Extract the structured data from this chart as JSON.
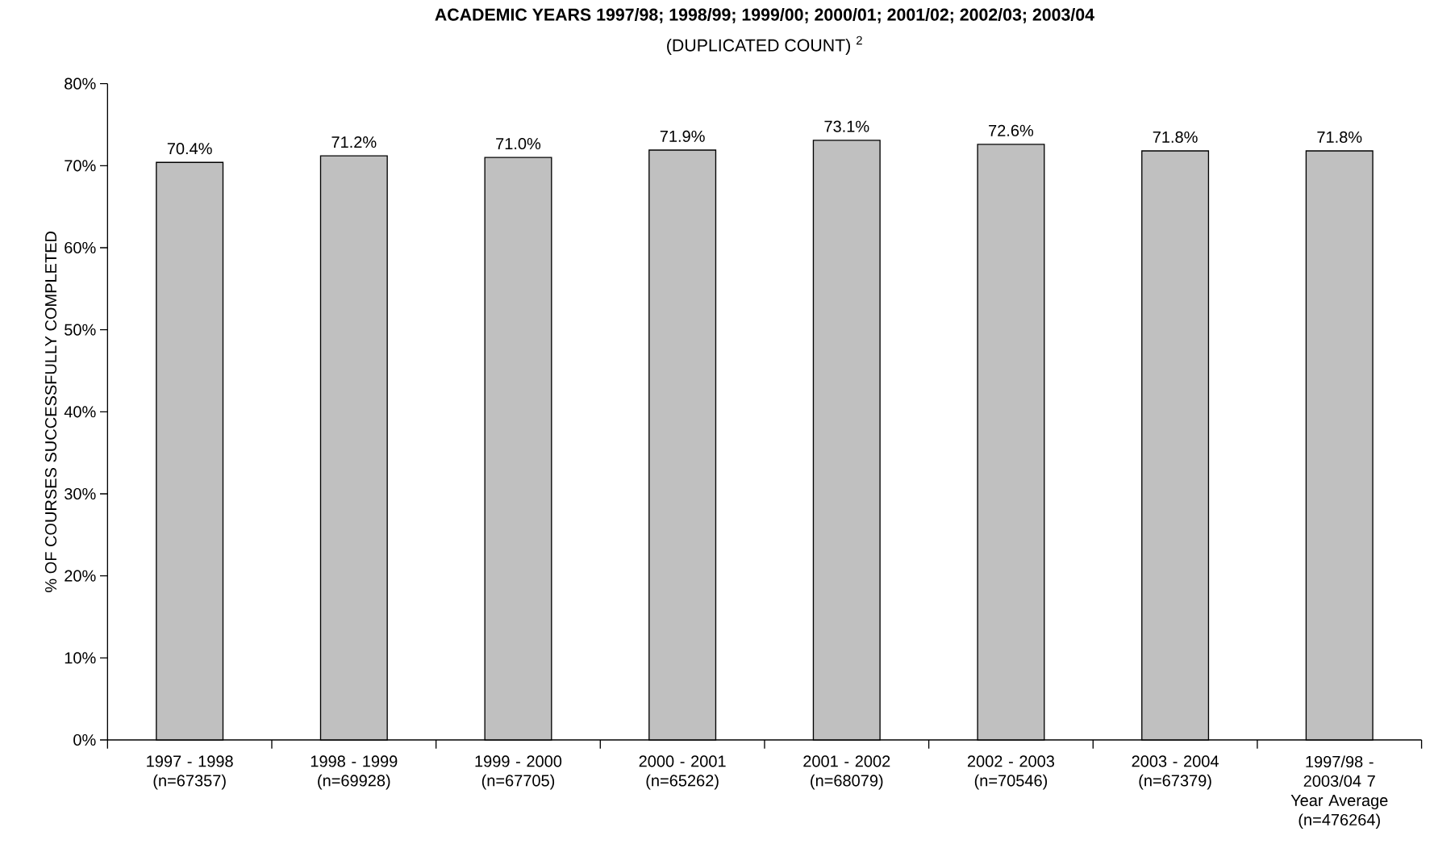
{
  "chart_data": {
    "type": "bar",
    "title": "ACADEMIC YEARS 1997/98; 1998/99; 1999/00; 2000/01; 2001/02; 2002/03; 2003/04",
    "subtitle": "(DUPLICATED COUNT) $^{2}$",
    "ylabel": "% OF COURSES SUCCESSFULLY COMPLETED",
    "categories": [
      "1997 - 1998 (n=67357)",
      "1998 - 1999 (n=69928)",
      "1999 - 2000 (n=67705)",
      "2000 - 2001 (n=65262)",
      "2001 - 2002 (n=68079)",
      "2002 - 2003 (n=70546)",
      "2003 - 2004 (n=67379)",
      "1997/98 - 2003/04 7 Year Average (n=476264)"
    ],
    "values": [
      70.4,
      71.2,
      71.0,
      71.9,
      73.1,
      72.6,
      71.8,
      71.8
    ],
    "value_labels": [
      "70.4%",
      "71.2%",
      "71.0%",
      "71.9%",
      "73.1%",
      "72.6%",
      "71.8%",
      "71.8%"
    ],
    "color": "#c0c0c0",
    "ylim": [
      0,
      80
    ],
    "yticks": [
      {
        "value": 0,
        "label": "0%"
      },
      {
        "value": 10,
        "label": "10%"
      },
      {
        "value": 20,
        "label": "20%"
      },
      {
        "value": 30,
        "label": "30%"
      },
      {
        "value": 40,
        "label": "40%"
      },
      {
        "value": 50,
        "label": "50%"
      },
      {
        "value": 60,
        "label": "60%"
      },
      {
        "value": 70,
        "label": "70%"
      },
      {
        "value": 80,
        "label": "80%"
      }
    ],
    "grid": false
  }
}
